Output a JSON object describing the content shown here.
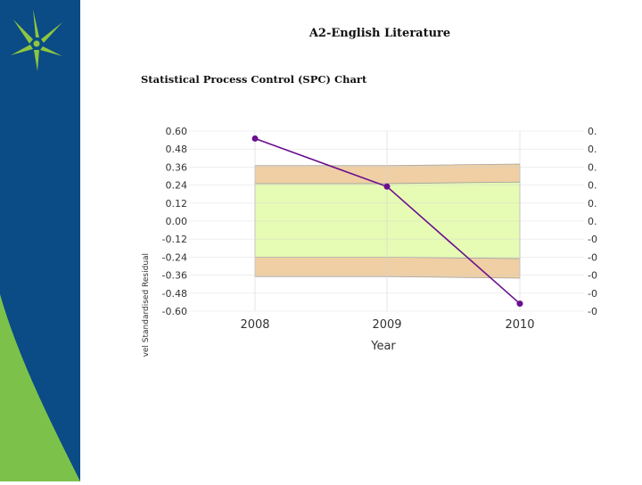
{
  "slide": {
    "title": "A2-English Literature",
    "chart_heading": "Statistical Process Control (SPC) Chart"
  },
  "colors": {
    "sidebar_blue": "#0b4b86",
    "sidebar_green": "#7cc24a",
    "logo_green": "#8dc63f",
    "outer_band": "#efcfa3",
    "inner_band": "#e6fbb4",
    "series_line": "#6a0f8e",
    "grid": "#d3d3d3"
  },
  "logo": {
    "icon": "star-logo-icon"
  },
  "chart_data": {
    "type": "line",
    "title": "",
    "xlabel": "Year",
    "ylabel": "A-Level Standardised Residual",
    "categories": [
      "2008",
      "2009",
      "2010"
    ],
    "series": [
      {
        "values": [
          0.55,
          0.23,
          -0.55
        ]
      }
    ],
    "ylim": [
      -0.6,
      0.6
    ],
    "yticks": [
      "0.60",
      "0.48",
      "0.36",
      "0.24",
      "0.12",
      "0.00",
      "-0.12",
      "-0.24",
      "-0.36",
      "-0.48",
      "-0.60"
    ],
    "y_axes": [
      "left",
      "right"
    ],
    "bands": {
      "outer": {
        "upper": [
          0.37,
          0.37,
          0.38
        ],
        "lower": [
          -0.37,
          -0.37,
          -0.38
        ]
      },
      "inner": {
        "upper": [
          0.25,
          0.25,
          0.26
        ],
        "lower": [
          -0.24,
          -0.24,
          -0.25
        ]
      }
    },
    "grid": true,
    "legend": "none"
  }
}
